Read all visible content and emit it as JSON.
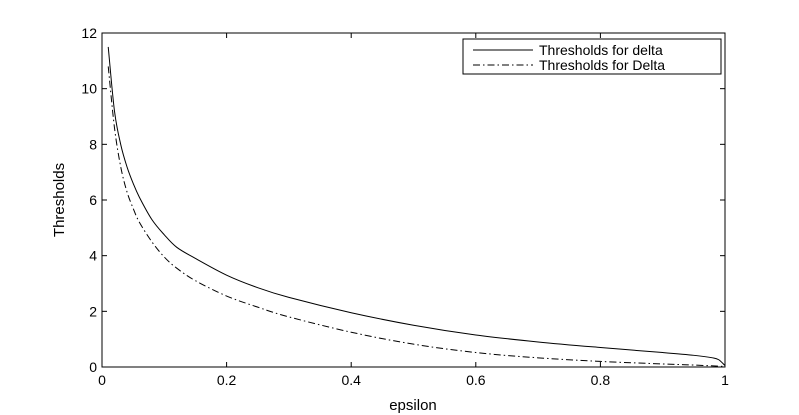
{
  "chart_data": {
    "type": "line",
    "xlabel": "epsilon",
    "ylabel": "Thresholds",
    "xlim": [
      0,
      1
    ],
    "ylim": [
      0,
      12
    ],
    "x_ticks": [
      0,
      0.2,
      0.4,
      0.6,
      0.8,
      1
    ],
    "x_tick_labels": [
      "0",
      "0.2",
      "0.4",
      "0.6",
      "0.8",
      "1"
    ],
    "y_ticks": [
      0,
      2,
      4,
      6,
      8,
      10,
      12
    ],
    "y_tick_labels": [
      "0",
      "2",
      "4",
      "6",
      "8",
      "10",
      "12"
    ],
    "grid": false,
    "legend_position": "top-right",
    "series": [
      {
        "name": "Thresholds for delta",
        "style": "solid",
        "color": "#000000",
        "x": [
          0.01,
          0.02,
          0.03,
          0.04,
          0.05,
          0.06,
          0.08,
          0.1,
          0.12,
          0.15,
          0.2,
          0.25,
          0.3,
          0.4,
          0.5,
          0.6,
          0.7,
          0.8,
          0.9,
          0.95,
          0.98,
          0.99,
          1.0
        ],
        "y": [
          11.5,
          9.2,
          8.0,
          7.2,
          6.6,
          6.1,
          5.3,
          4.75,
          4.3,
          3.9,
          3.3,
          2.85,
          2.5,
          1.95,
          1.5,
          1.15,
          0.9,
          0.7,
          0.52,
          0.42,
          0.33,
          0.26,
          0.05
        ]
      },
      {
        "name": "Thresholds for Delta",
        "style": "dash-dot",
        "color": "#000000",
        "x": [
          0.01,
          0.02,
          0.03,
          0.04,
          0.05,
          0.06,
          0.08,
          0.1,
          0.12,
          0.15,
          0.2,
          0.25,
          0.3,
          0.4,
          0.5,
          0.6,
          0.7,
          0.8,
          0.9,
          0.95,
          1.0
        ],
        "y": [
          10.8,
          8.6,
          7.2,
          6.3,
          5.7,
          5.2,
          4.5,
          3.95,
          3.55,
          3.1,
          2.55,
          2.15,
          1.8,
          1.25,
          0.82,
          0.52,
          0.33,
          0.2,
          0.11,
          0.07,
          0.02
        ]
      }
    ]
  }
}
